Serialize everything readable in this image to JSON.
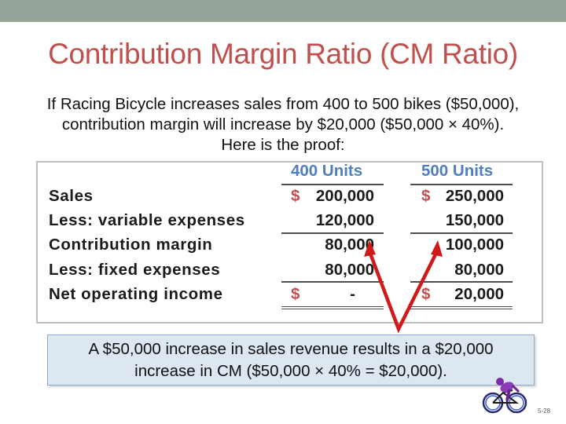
{
  "slide": {
    "title": "Contribution Margin Ratio (CM Ratio)",
    "intro": {
      "line1": "If Racing Bicycle increases sales from 400 to 500 bikes ($50,000),",
      "line2": "contribution margin will increase by $20,000 ($50,000 × 40%).",
      "line3": "Here is the proof:"
    },
    "table": {
      "columns": [
        "400 Units",
        "500 Units"
      ],
      "rows": [
        {
          "label": "Sales",
          "values": [
            "200,000",
            "250,000"
          ],
          "dollar": true
        },
        {
          "label": "Less: variable expenses",
          "values": [
            "120,000",
            "150,000"
          ],
          "dollar": false
        },
        {
          "label": "Contribution margin",
          "values": [
            "80,000",
            "100,000"
          ],
          "dollar": false
        },
        {
          "label": "Less: fixed expenses",
          "values": [
            "80,000",
            "80,000"
          ],
          "dollar": false
        },
        {
          "label": "Net operating income",
          "values": [
            "-",
            "20,000"
          ],
          "dollar": true
        }
      ],
      "currency_symbol": "$"
    },
    "callout": {
      "line1": "A $50,000 increase in sales revenue results in a $20,000",
      "line2": "increase in CM ($50,000 × 40% = $20,000)."
    },
    "slide_number": "5-28",
    "colors": {
      "title": "#c0504d",
      "column_header": "#4f7fbf",
      "dollar": "#c0504d",
      "arrow": "#d01919",
      "callout_bg": "#dde7f2",
      "top_bar": "#94a498"
    }
  }
}
